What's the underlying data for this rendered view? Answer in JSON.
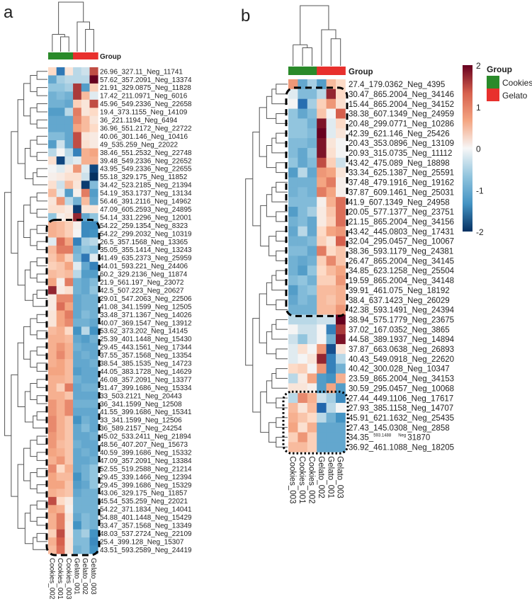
{
  "chart_data": [
    {
      "type": "heatmap",
      "panel_label": "a",
      "group_title": "Group",
      "columns": [
        "Cookies_002",
        "Cookies_001",
        "Cookies_003",
        "Gelato_001",
        "Gelato_002",
        "Gelato_003"
      ],
      "column_groups": [
        "Cookies",
        "Cookies",
        "Cookies",
        "Gelato",
        "Gelato",
        "Gelato"
      ],
      "rows": [
        "26.96_327.11_Neg_11741",
        "57.62_357.2091_Neg_13374",
        "21.91_329.0875_Neg_11828",
        "17.42_211.0971_Neg_6016",
        "45.96_549.2336_Neg_22658",
        "19.4_373.1155_Neg_14109",
        "36_221.1194_Neg_6494",
        "36.96_551.2172_Neg_22722",
        "40.06_301.146_Neg_10416",
        "49_535.259_Neg_22022",
        "38.46_551.2532_Neg_22748",
        "39.48_549.2336_Neg_22652",
        "43.95_549.2336_Neg_22655",
        "55.18_329.175_Neg_11852",
        "34.42_523.2185_Neg_21394",
        "54.19_353.1737_Neg_13134",
        "56.46_391.2116_Neg_14962",
        "47.09_605.2593_Neg_24895",
        "54.14_331.2296_Neg_12001",
        "54.22_259.1354_Neg_8323",
        "54.22_299.2032_Neg_10319",
        "26.5_357.1568_Neg_13365",
        "35.05_355.1414_Neg_13243",
        "41.49_635.2373_Neg_25959",
        "44.01_593.221_Neg_24406",
        "60.2_329.2136_Neg_11874",
        "21.9_561.197_Neg_23072",
        "42.5_507.223_Neg_20627",
        "29.01_547.2063_Neg_22506",
        "41.08_341.1599_Neg_12505",
        "33.48_371.1367_Neg_14026",
        "40.07_369.1547_Neg_13912",
        "53.62_373.202_Neg_14145",
        "25.39_401.1448_Neg_15430",
        "29.45_443.1561_Neg_17344",
        "37.55_357.1568_Neg_13354",
        "38.54_385.1535_Neg_14723",
        "44.05_383.1728_Neg_14629",
        "46.08_357.2091_Neg_13377",
        "31.47_399.1686_Neg_15334",
        "33_503.2121_Neg_20443",
        "36_341.1599_Neg_12508",
        "41.55_399.1686_Neg_15341",
        "33_341.1599_Neg_12506",
        "36_589.2157_Neg_24254",
        "45.02_533.2411_Neg_21894",
        "48.56_407.207_Neg_15673",
        "40.59_399.1686_Neg_15332",
        "47.09_357.2091_Neg_13384",
        "52.55_519.2588_Neg_21214",
        "29.45_339.1466_Neg_12394",
        "29.45_399.1686_Neg_15329",
        "43.06_329.175_Neg_11857",
        "45.54_535.259_Neg_22021",
        "54.22_371.1834_Neg_14041",
        "54.88_401.1448_Neg_15429",
        "33.47_357.1568_Neg_13349",
        "48.03_537.2724_Neg_22109",
        "25.4_399.128_Neg_15307",
        "43.51_593.2589_Neg_24419"
      ],
      "values": [
        [
          0.5,
          -1.3,
          0.3,
          -0.3,
          -0.2,
          1.6
        ],
        [
          -0.8,
          -0.4,
          -0.3,
          -0.3,
          -0.3,
          2.0
        ],
        [
          -0.5,
          -0.5,
          -0.4,
          1.7,
          -0.9,
          0.6
        ],
        [
          -0.7,
          -0.6,
          -0.7,
          1.7,
          0.8,
          -0.1
        ],
        [
          -0.7,
          -0.7,
          -0.8,
          0.6,
          0.3,
          1.6
        ],
        [
          -0.9,
          -0.9,
          -0.3,
          1.3,
          0.3,
          0.5
        ],
        [
          -0.8,
          -0.8,
          -0.8,
          1.2,
          0.8,
          0.3
        ],
        [
          -0.8,
          -0.8,
          -0.8,
          1.0,
          0.8,
          0.5
        ],
        [
          -0.6,
          -0.6,
          -0.8,
          1.6,
          0.3,
          0.2
        ],
        [
          -0.9,
          -0.2,
          -0.8,
          1.6,
          0.4,
          0.2
        ],
        [
          -0.3,
          0.0,
          -0.3,
          -1.2,
          0.9,
          1.0
        ],
        [
          0.4,
          -1.8,
          -0.2,
          -0.1,
          0.9,
          0.9
        ],
        [
          0.0,
          -0.1,
          0.2,
          1.1,
          -0.1,
          -1.8
        ],
        [
          0.1,
          0.2,
          0.4,
          0.4,
          -0.2,
          -2.0
        ],
        [
          0.4,
          -0.2,
          0.8,
          0.3,
          -1.9,
          -0.6
        ],
        [
          0.8,
          -0.1,
          -0.9,
          0.1,
          1.3,
          -0.9
        ],
        [
          0.3,
          1.1,
          -0.3,
          -0.7,
          0.8,
          -0.8
        ],
        [
          0.4,
          0.4,
          0.2,
          -1.9,
          0.3,
          0.3
        ],
        [
          -0.5,
          0.1,
          0.3,
          1.8,
          -0.8,
          -0.5
        ],
        [
          0.9,
          0.8,
          0.6,
          0.1,
          -1.1,
          -1.1
        ],
        [
          0.9,
          0.8,
          0.6,
          0.0,
          -1.1,
          -1.0
        ],
        [
          -0.1,
          1.4,
          1.0,
          -1.2,
          -0.4,
          -0.3
        ],
        [
          0.8,
          1.3,
          1.3,
          -0.7,
          -0.5,
          -0.6
        ],
        [
          0.7,
          1.0,
          0.6,
          -0.6,
          -1.3,
          -0.1
        ],
        [
          0.6,
          0.7,
          1.0,
          -0.1,
          -0.8,
          -1.2
        ],
        [
          0.8,
          0.7,
          0.8,
          -0.3,
          -0.9,
          -0.9
        ],
        [
          1.0,
          0.1,
          1.3,
          -0.7,
          -0.8,
          -0.6
        ],
        [
          1.8,
          0.2,
          0.4,
          -0.7,
          -0.8,
          -0.5
        ],
        [
          0.2,
          1.2,
          1.2,
          -0.8,
          -0.7,
          -0.7
        ],
        [
          0.2,
          1.4,
          1.0,
          -0.8,
          -0.7,
          -0.7
        ],
        [
          0.3,
          1.0,
          1.3,
          -0.8,
          -0.6,
          -0.7
        ],
        [
          0.3,
          1.0,
          1.2,
          -0.7,
          -0.7,
          -0.8
        ],
        [
          0.8,
          0.9,
          0.5,
          -1.0,
          -0.3,
          -1.0
        ],
        [
          0.9,
          0.9,
          0.8,
          -0.8,
          -0.9,
          -0.7
        ],
        [
          0.9,
          1.1,
          0.9,
          -0.7,
          -0.8,
          -0.8
        ],
        [
          0.9,
          1.2,
          0.9,
          -0.8,
          -0.7,
          -0.8
        ],
        [
          0.9,
          1.0,
          0.8,
          -0.8,
          -0.8,
          -0.7
        ],
        [
          1.0,
          1.0,
          0.8,
          -0.9,
          -0.8,
          -0.8
        ],
        [
          0.9,
          0.9,
          0.8,
          -0.7,
          -0.8,
          -0.8
        ],
        [
          0.9,
          0.6,
          1.3,
          -0.8,
          -0.7,
          -0.7
        ],
        [
          0.9,
          0.9,
          0.7,
          -0.8,
          -0.8,
          -0.8
        ],
        [
          1.1,
          0.9,
          1.2,
          -0.7,
          -0.7,
          -0.7
        ],
        [
          1.1,
          0.9,
          1.2,
          -0.8,
          -0.8,
          -0.8
        ],
        [
          1.2,
          0.9,
          0.7,
          -1.0,
          -0.7,
          -0.8
        ],
        [
          1.2,
          0.9,
          0.7,
          -0.8,
          -0.6,
          -0.8
        ],
        [
          1.1,
          0.9,
          0.7,
          -0.8,
          -0.8,
          -0.7
        ],
        [
          1.1,
          0.8,
          0.7,
          -0.7,
          -0.8,
          -0.8
        ],
        [
          1.0,
          0.9,
          0.7,
          -0.8,
          -0.7,
          -0.8
        ],
        [
          0.9,
          1.1,
          0.7,
          -0.8,
          -0.8,
          -0.7
        ],
        [
          1.2,
          0.5,
          0.9,
          -0.8,
          -0.7,
          -0.5
        ],
        [
          1.0,
          0.8,
          0.8,
          -1.0,
          -0.7,
          -0.5
        ],
        [
          1.0,
          1.0,
          0.7,
          -0.9,
          -0.8,
          -0.5
        ],
        [
          0.9,
          0.8,
          0.7,
          -0.8,
          -0.7,
          -0.7
        ],
        [
          1.6,
          0.5,
          0.2,
          -0.7,
          -0.7,
          -0.7
        ],
        [
          1.0,
          0.9,
          0.1,
          -0.7,
          -0.7,
          -0.7
        ],
        [
          0.9,
          1.3,
          0.3,
          -0.8,
          -0.6,
          -0.7
        ],
        [
          0.9,
          1.3,
          0.2,
          -1.0,
          -0.6,
          -0.7
        ],
        [
          0.6,
          1.6,
          0.2,
          -0.6,
          -0.4,
          -1.0
        ],
        [
          0.9,
          1.5,
          0.3,
          -0.6,
          -0.6,
          -1.1
        ],
        [
          0.8,
          1.4,
          0.3,
          -0.7,
          -0.6,
          -1.0
        ]
      ]
    },
    {
      "type": "heatmap",
      "panel_label": "b",
      "group_title": "Group",
      "columns": [
        "Cookies_003",
        "Cookies_001",
        "Cookies_002",
        "Gelato_002",
        "Gelato_001",
        "Gelato_003"
      ],
      "column_groups": [
        "Cookies",
        "Cookies",
        "Cookies",
        "Gelato",
        "Gelato",
        "Gelato"
      ],
      "rows": [
        "27.4_179.0362_Neg_4395",
        "30.47_865.2004_Neg_34146",
        "15.44_865.2004_Neg_34152",
        "38.38_607.1349_Neg_24959",
        "20.48_299.0771_Neg_10286",
        "42.39_621.146_Neg_25426",
        "20.43_353.0896_Neg_13109",
        "20.93_315.0735_Neg_11112",
        "43.42_475.089_Neg_18898",
        "33.34_625.1387_Neg_25591",
        "37.48_479.1916_Neg_19162",
        "37.87_609.1461_Neg_25031",
        "41.9_607.1349_Neg_24958",
        "20.05_577.1377_Neg_23751",
        "21.15_865.2004_Neg_34156",
        "43.42_445.0803_Neg_17431",
        "32.04_295.0457_Neg_10067",
        "38.36_593.1179_Neg_24381",
        "26.47_865.2004_Neg_34145",
        "34.85_623.1258_Neg_25504",
        "19.59_865.2004_Neg_34148",
        "39.91_461.075_Neg_18192",
        "38.4_637.1423_Neg_26029",
        "42.38_593.1491_Neg_24394",
        "38.94_575.1779_Neg_23675",
        "37.02_167.0352_Neg_3865",
        "44.58_389.1937_Neg_14894",
        "37.87_663.0638_Neg_26893",
        "40.43_549.0918_Neg_22620",
        "40.42_300.028_Neg_10347",
        "23.59_865.2004_Neg_34153",
        "30.59_295.0457_Neg_10068",
        "27.44_449.1106_Neg_17617",
        "27.93_385.1158_Neg_14707",
        "45.91_621.1632_Neg_25435",
        "27.43_145.0308_Neg_2858",
        "34.35_",
        "36.92_461.1088_Neg_18205"
      ],
      "garbled_row": {
        "index": 36,
        "overlay_1": "593.1488",
        "overlay_2": "Neg",
        "suffix": "31870"
      },
      "values": [
        [
          1.1,
          -0.8,
          -0.4,
          -0.9,
          0.8,
          0.5
        ],
        [
          -0.1,
          -0.6,
          -0.6,
          -0.3,
          1.8,
          0.5
        ],
        [
          0.0,
          -1.4,
          -0.4,
          0.6,
          1.1,
          0.4
        ],
        [
          -0.5,
          -0.8,
          -0.6,
          0.7,
          0.0,
          1.5
        ],
        [
          -0.5,
          -0.5,
          -0.7,
          1.9,
          -0.1,
          0.5
        ],
        [
          -0.5,
          -0.5,
          -0.6,
          2.0,
          -0.1,
          0.3
        ],
        [
          -0.6,
          -0.6,
          -0.7,
          1.9,
          0.3,
          0.0
        ],
        [
          -0.6,
          -0.8,
          -0.5,
          1.9,
          0.4,
          0.0
        ],
        [
          -0.5,
          -0.8,
          -0.6,
          1.6,
          0.6,
          -0.2
        ],
        [
          -0.9,
          -0.3,
          -0.8,
          1.1,
          1.0,
          0.3
        ],
        [
          -0.7,
          -0.7,
          -0.7,
          1.0,
          1.3,
          0.1
        ],
        [
          -0.7,
          -0.6,
          -0.7,
          1.3,
          1.0,
          0.1
        ],
        [
          -0.6,
          -0.6,
          -0.6,
          0.1,
          0.9,
          1.4
        ],
        [
          -0.9,
          -0.6,
          -0.4,
          0.2,
          0.7,
          1.4
        ],
        [
          -0.7,
          -0.6,
          -0.8,
          0.2,
          0.6,
          1.4
        ],
        [
          -0.8,
          -0.3,
          -0.8,
          0.5,
          1.0,
          1.1
        ],
        [
          -0.7,
          -0.7,
          -0.6,
          0.6,
          0.3,
          1.5
        ],
        [
          -0.6,
          -0.6,
          -0.8,
          1.3,
          0.5,
          0.7
        ],
        [
          -0.7,
          -0.8,
          -0.7,
          0.6,
          1.2,
          0.7
        ],
        [
          -0.7,
          -0.9,
          -0.5,
          0.5,
          0.8,
          1.0
        ],
        [
          -0.6,
          -0.5,
          -0.7,
          0.6,
          0.6,
          1.1
        ],
        [
          -0.9,
          -0.6,
          -0.5,
          0.8,
          0.8,
          0.9
        ],
        [
          -0.8,
          -0.6,
          -0.7,
          0.8,
          0.7,
          0.9
        ],
        [
          -0.7,
          -0.7,
          -0.7,
          0.8,
          0.8,
          1.1
        ],
        [
          -0.3,
          -0.3,
          -0.3,
          -0.2,
          -0.2,
          2.0
        ],
        [
          0.0,
          -0.2,
          -0.2,
          0.0,
          -1.2,
          1.7
        ],
        [
          -0.2,
          -0.5,
          -0.2,
          0.0,
          -0.7,
          1.9
        ],
        [
          -0.1,
          0.4,
          0.0,
          1.1,
          -1.7,
          0.3
        ],
        [
          -0.1,
          0.0,
          0.3,
          1.8,
          -1.2,
          -0.3
        ],
        [
          0.5,
          0.6,
          0.0,
          1.1,
          -1.2,
          -0.7
        ],
        [
          -0.3,
          0.2,
          1.0,
          -0.9,
          -1.0,
          0.9
        ],
        [
          0.3,
          0.3,
          0.1,
          -0.9,
          1.0,
          -0.9
        ],
        [
          -0.3,
          1.2,
          0.9,
          -0.2,
          -0.4,
          -1.1
        ],
        [
          0.8,
          0.3,
          0.8,
          -1.5,
          -0.3,
          0.0
        ],
        [
          0.9,
          0.7,
          0.5,
          -0.3,
          -0.7,
          -1.0
        ],
        [
          1.0,
          0.4,
          0.9,
          -0.8,
          -0.8,
          -0.8
        ],
        [
          0.6,
          1.1,
          0.6,
          -0.8,
          -0.8,
          -0.8
        ],
        [
          0.8,
          0.8,
          0.6,
          -0.8,
          -0.8,
          -0.8
        ]
      ]
    }
  ],
  "legend": {
    "colorbar_range": [
      -2,
      2
    ],
    "colorbar_ticks": [
      "2",
      "1",
      "0",
      "-1",
      "-2"
    ],
    "colorbar_colors": [
      "#67001f",
      "#d6604d",
      "#f4a582",
      "#f7f7f7",
      "#92c5de",
      "#4393c3",
      "#053061"
    ],
    "group_title": "Group",
    "groups": [
      {
        "label": "Cookies",
        "color": "#2a8a2a"
      },
      {
        "label": "Gelato",
        "color": "#e8302d"
      }
    ]
  }
}
